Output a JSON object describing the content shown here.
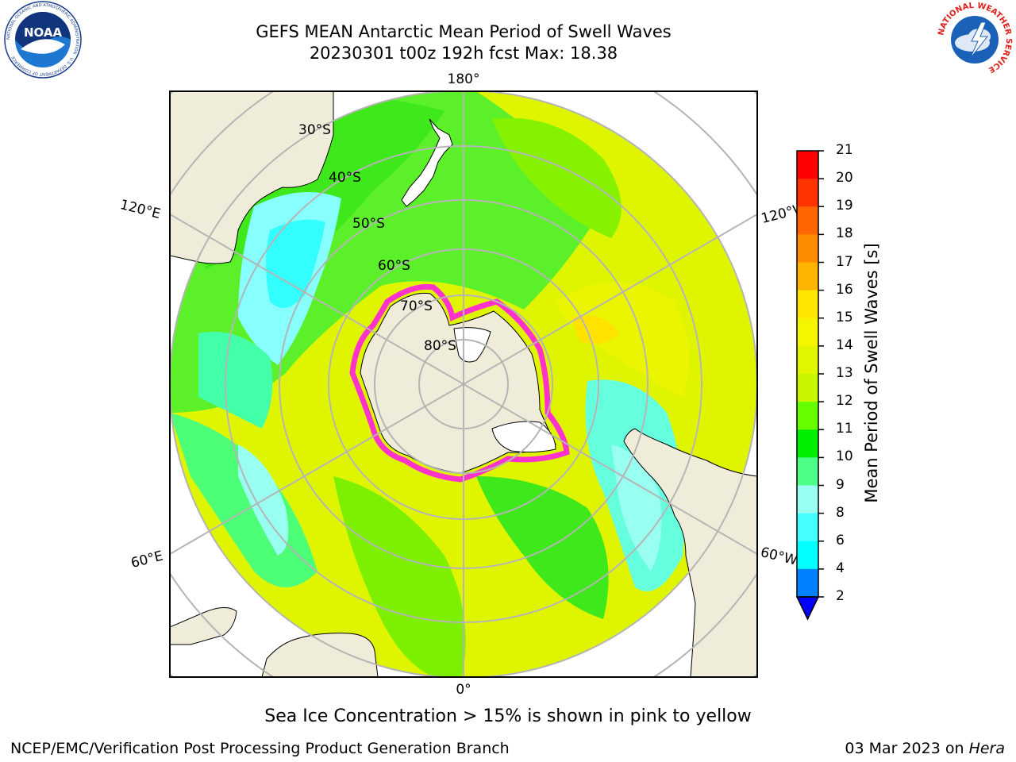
{
  "title": {
    "line1": "GEFS MEAN Antarctic Mean Period of Swell Waves",
    "line2": "20230301 t00z 192h fcst   Max: 18.38"
  },
  "map": {
    "projection": "south-polar-stereographic",
    "meridian_labels": {
      "top": "180°",
      "bottom": "0°",
      "upper_left": "120°E",
      "upper_right": "120°W",
      "lower_left": "60°E",
      "lower_right": "60°W"
    },
    "parallel_labels": [
      "30°S",
      "40°S",
      "50°S",
      "60°S",
      "70°S",
      "80°S"
    ],
    "colors": {
      "land": "#efedd9",
      "grid": "#b5b5b5",
      "sea_ice": "#ff33cc",
      "antarctic_ice_shelf": "#ffffff"
    }
  },
  "colorbar": {
    "label": "Mean Period of Swell Waves [s]",
    "ticks": [
      "21",
      "20",
      "19",
      "18",
      "17",
      "16",
      "15",
      "14",
      "13",
      "12",
      "11",
      "10",
      "9",
      "8",
      "6",
      "4",
      "2"
    ],
    "colors": [
      "#ff0000",
      "#ff3300",
      "#ff6600",
      "#ff8c00",
      "#ffb400",
      "#ffe600",
      "#f5f500",
      "#e0f500",
      "#c8f500",
      "#66ff00",
      "#00ee00",
      "#4dff88",
      "#99fff0",
      "#44ffff",
      "#00ffff",
      "#0080ff",
      "#0000ff"
    ]
  },
  "caption": "Sea Ice Concentration > 15% is shown in pink to yellow",
  "credits": {
    "left": "NCEP/EMC/Verification Post Processing Product Generation Branch",
    "right_prefix": "03 Mar 2023 on ",
    "right_host": "Hera"
  },
  "logos": {
    "noaa_text": "NOAA",
    "noaa_ring": "NATIONAL OCEANIC AND ATMOSPHERIC ADMINISTRATION · U.S. DEPARTMENT OF COMMERCE",
    "nws_ring": "NATIONAL WEATHER SERVICE"
  }
}
